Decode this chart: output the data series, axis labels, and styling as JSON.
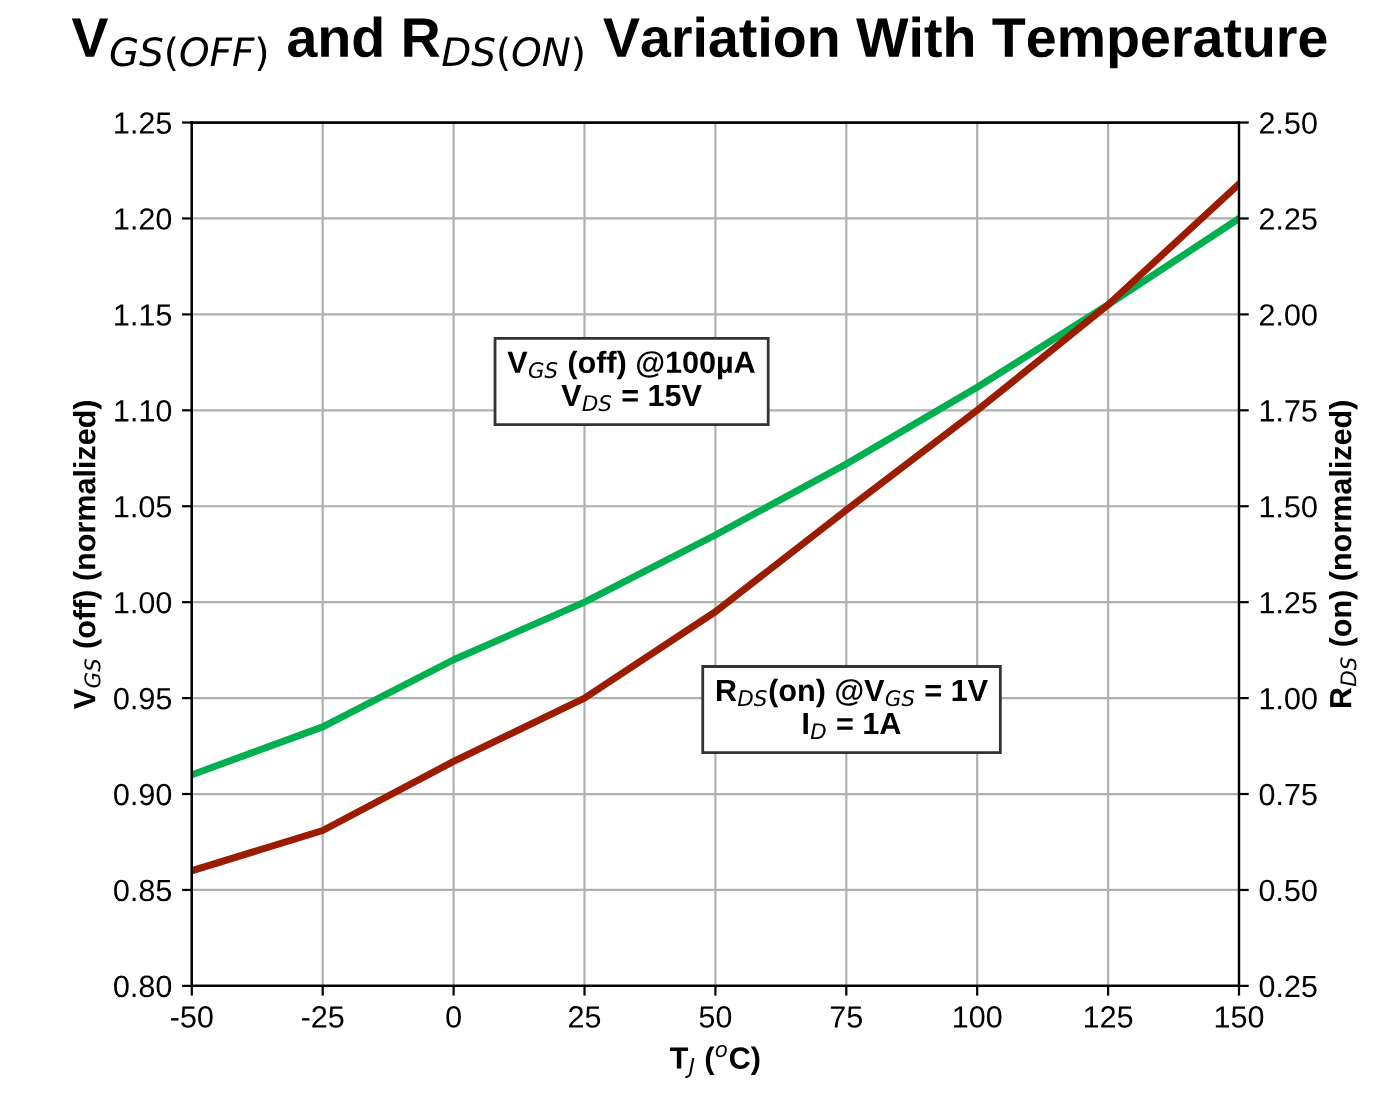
{
  "chart_data": {
    "type": "line",
    "title": "V$_{GS(OFF)}$ and R$_{DS(ON)}$ Variation With Temperature",
    "xlabel": "T$_{J}$ ($^{o}$C)",
    "ylabel": "V$_{GS}$ (off) (normalized)",
    "y2label": "R$_{DS}$ (on) (normalized)",
    "x": [
      -50,
      -25,
      0,
      25,
      50,
      75,
      100,
      125,
      150
    ],
    "series": [
      {
        "color": "#00b050",
        "values": [
          0.91,
          0.935,
          0.97,
          1.0,
          1.035,
          1.072,
          1.112,
          1.155,
          1.2
        ]
      },
      {
        "color": "#9b1c00",
        "axis": "y2",
        "values": [
          0.55,
          0.655,
          0.835,
          1.0,
          1.225,
          1.49,
          1.75,
          2.025,
          2.34
        ]
      }
    ],
    "xlim": [
      -50,
      150
    ],
    "xticks": [
      -50,
      -25,
      0,
      25,
      50,
      75,
      100,
      125,
      150
    ],
    "ylim": [
      0.8,
      1.25
    ],
    "yticks": [
      {
        "value": 0.8,
        "label": "0.80"
      },
      {
        "value": 0.85,
        "label": "0.85"
      },
      {
        "value": 0.9,
        "label": "0.90"
      },
      {
        "value": 0.95,
        "label": "0.95"
      },
      {
        "value": 1.0,
        "label": "1.00"
      },
      {
        "value": 1.05,
        "label": "1.05"
      },
      {
        "value": 1.1,
        "label": "1.10"
      },
      {
        "value": 1.15,
        "label": "1.15"
      },
      {
        "value": 1.2,
        "label": "1.20"
      },
      {
        "value": 1.25,
        "label": "1.25"
      }
    ],
    "y2lim": [
      0.25,
      2.5
    ],
    "y2ticks": [
      {
        "value": 0.25,
        "label": "0.25"
      },
      {
        "value": 0.5,
        "label": "0.50"
      },
      {
        "value": 0.75,
        "label": "0.75"
      },
      {
        "value": 1.0,
        "label": "1.00"
      },
      {
        "value": 1.25,
        "label": "1.25"
      },
      {
        "value": 1.5,
        "label": "1.50"
      },
      {
        "value": 1.75,
        "label": "1.75"
      },
      {
        "value": 2.0,
        "label": "2.00"
      },
      {
        "value": 2.25,
        "label": "2.25"
      },
      {
        "value": 2.5,
        "label": "2.50"
      }
    ],
    "annotations": [
      "V$_{GS}$ (off) @100µA\nV$_{DS}$ = 15V",
      "R$_{DS}$(on) @V$_{GS}$ = 1V\nI$_{D}$ = 1A"
    ],
    "grid": true,
    "marker": "none",
    "line_style": "solid"
  }
}
